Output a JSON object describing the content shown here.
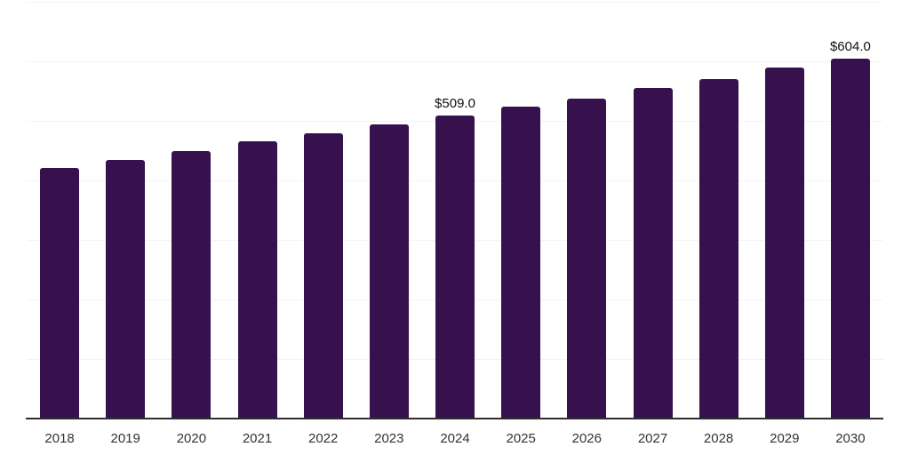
{
  "chart_data": {
    "type": "bar",
    "title": "",
    "xlabel": "",
    "ylabel": "",
    "categories": [
      "2018",
      "2019",
      "2020",
      "2021",
      "2022",
      "2023",
      "2024",
      "2025",
      "2026",
      "2027",
      "2028",
      "2029",
      "2030"
    ],
    "values": [
      421,
      434,
      449,
      465,
      479,
      494,
      509,
      524,
      538,
      555,
      570,
      589,
      604
    ],
    "data_labels": [
      "",
      "",
      "",
      "",
      "",
      "",
      "$509.0",
      "",
      "",
      "",
      "",
      "",
      "$604.0"
    ],
    "ylim": [
      0,
      700
    ],
    "grid_step": 100,
    "grid": "horizontal-only",
    "legend_position": "none",
    "colors": {
      "bar": "#36114E",
      "gridline": "#f3f3f3",
      "axis_line": "#2e2e2e",
      "x_label": "#333333",
      "data_label": "#111111",
      "background": "#ffffff"
    }
  }
}
